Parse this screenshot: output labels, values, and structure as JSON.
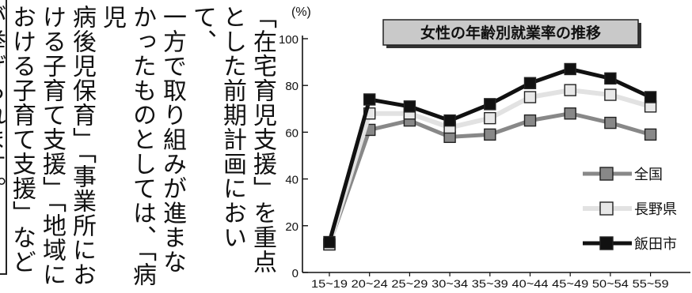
{
  "article": {
    "lines": [
      "「在宅育児支援」を重点",
      "とした前期計画において、",
      "一方で取り組みが進まな",
      "かったものとしては、「病児",
      "病後児保育」「事業所にお",
      "ける子育て支援」「地域に",
      "おける子育て支援」など",
      "が挙げられます。"
    ]
  },
  "chart_data": {
    "type": "line",
    "title": "女性の年齢別就業率の推移",
    "ylabel": "(%)",
    "xlabel": "",
    "ylim": [
      0,
      100
    ],
    "yticks": [
      0,
      20,
      40,
      60,
      80,
      100
    ],
    "categories": [
      "15~19",
      "20~24",
      "25~29",
      "30~34",
      "35~39",
      "40~44",
      "45~49",
      "50~54",
      "55~59"
    ],
    "series": [
      {
        "name": "全国",
        "color": "#888888",
        "marker_fill": "#888888",
        "values": [
          12,
          61,
          65,
          58,
          59,
          65,
          68,
          64,
          59
        ]
      },
      {
        "name": "長野県",
        "color": "#e2e2e2",
        "marker_fill": "#e8e8e8",
        "values": [
          12,
          68,
          68,
          62,
          66,
          75,
          78,
          76,
          71
        ]
      },
      {
        "name": "飯田市",
        "color": "#111111",
        "marker_fill": "#111111",
        "values": [
          13,
          74,
          71,
          65,
          72,
          81,
          87,
          83,
          75
        ]
      }
    ],
    "legend_position": "bottom-right",
    "grid": false
  }
}
